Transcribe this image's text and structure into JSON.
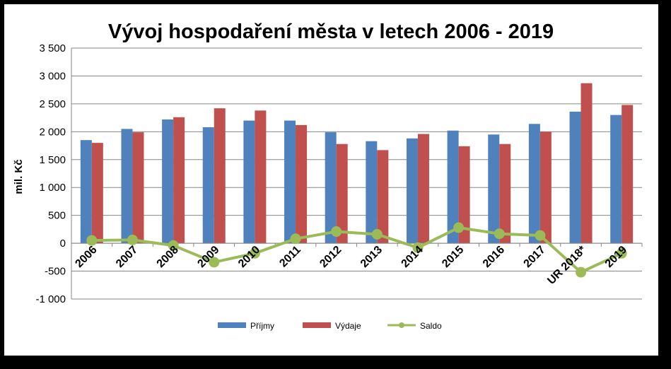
{
  "chart_data": {
    "type": "bar",
    "title": "Vývoj hospodaření města v letech 2006 - 2019",
    "ylabel": "mil. Kč",
    "xlabel": "",
    "categories": [
      "2006",
      "2007",
      "2008",
      "2009",
      "2010",
      "2011",
      "2012",
      "2013",
      "2014",
      "2015",
      "2016",
      "2017",
      "UR 2018*",
      "2019"
    ],
    "ylim": [
      -1000,
      3500
    ],
    "yticks": [
      -1000,
      -500,
      0,
      500,
      1000,
      1500,
      2000,
      2500,
      3000,
      3500
    ],
    "ytick_labels": [
      "-1 000",
      "-500",
      "0",
      "500",
      "1 000",
      "1 500",
      "2 000",
      "2 500",
      "3 000",
      "3 500"
    ],
    "grid": true,
    "legend_position": "bottom",
    "series": [
      {
        "name": "Příjmy",
        "kind": "bar",
        "color": "#4F81BD",
        "values": [
          1850,
          2050,
          2220,
          2080,
          2200,
          2200,
          1990,
          1830,
          1880,
          2020,
          1950,
          2140,
          2360,
          2300
        ]
      },
      {
        "name": "Výdaje",
        "kind": "bar",
        "color": "#C0504D",
        "values": [
          1800,
          1990,
          2260,
          2420,
          2380,
          2120,
          1780,
          1670,
          1960,
          1740,
          1780,
          2000,
          2870,
          2480
        ]
      },
      {
        "name": "Saldo",
        "kind": "line",
        "color": "#9BBB59",
        "values": [
          50,
          60,
          -40,
          -340,
          -180,
          80,
          210,
          160,
          -80,
          280,
          170,
          140,
          -520,
          -180
        ]
      }
    ]
  }
}
